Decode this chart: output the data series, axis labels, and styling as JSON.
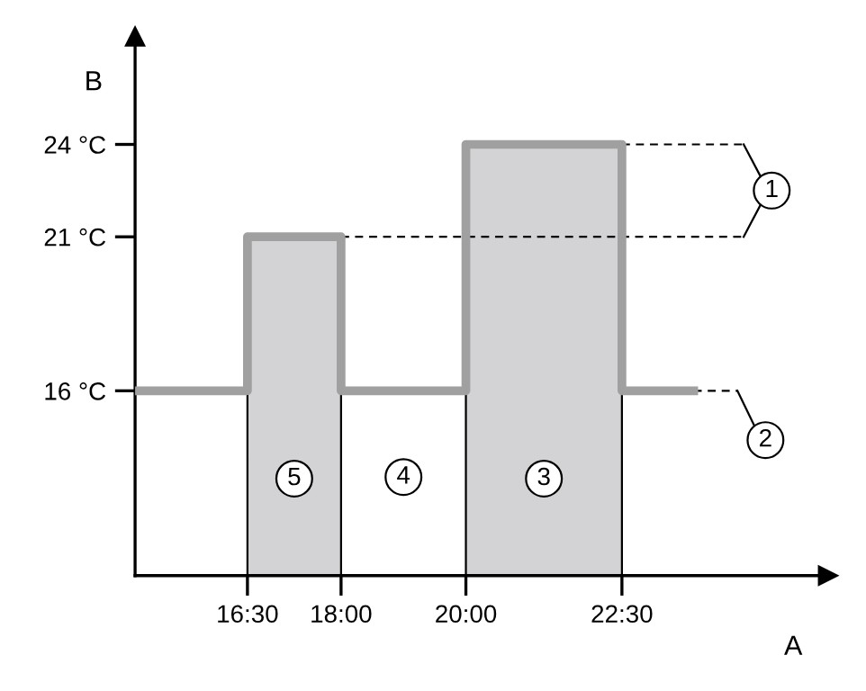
{
  "chart_data": {
    "type": "step",
    "xlabel": "A",
    "ylabel": "B",
    "xlim": [
      14.7,
      25.8
    ],
    "ylim": [
      10,
      27.5
    ],
    "xticks": [
      {
        "value": 16.5,
        "label": "16:30"
      },
      {
        "value": 18,
        "label": "18:00"
      },
      {
        "value": 20,
        "label": "20:00"
      },
      {
        "value": 22.5,
        "label": "22:30"
      }
    ],
    "yticks": [
      {
        "value": 16,
        "label": "16 °C"
      },
      {
        "value": 21,
        "label": "21 °C"
      },
      {
        "value": 24,
        "label": "24 °C"
      }
    ],
    "series": [
      {
        "color": "#a0a0a0",
        "x": [
          14.7,
          16.5,
          18,
          20,
          22.5,
          23.65
        ],
        "values": [
          16,
          21,
          16,
          24,
          16,
          16
        ]
      }
    ],
    "bands": [
      {
        "axis": "x",
        "from": 16.5,
        "to": 18,
        "label": "5",
        "color": "#d3d3d5"
      },
      {
        "axis": "x",
        "from": 20,
        "to": 22.5,
        "label": "3",
        "color": "#d3d3d5"
      }
    ],
    "annotations": [
      {
        "text": "4",
        "x": 19,
        "y": 13.2
      },
      {
        "text": "1",
        "x": 24.9,
        "y": 22.5
      },
      {
        "text": "2",
        "x": 24.8,
        "y": 14.4
      }
    ],
    "ref_lines": [
      {
        "axis": "y",
        "value": 24,
        "line_style": "dashed",
        "color": "#000000"
      },
      {
        "axis": "y",
        "value": 21,
        "line_style": "dashed",
        "color": "#000000"
      }
    ],
    "grid": false
  }
}
